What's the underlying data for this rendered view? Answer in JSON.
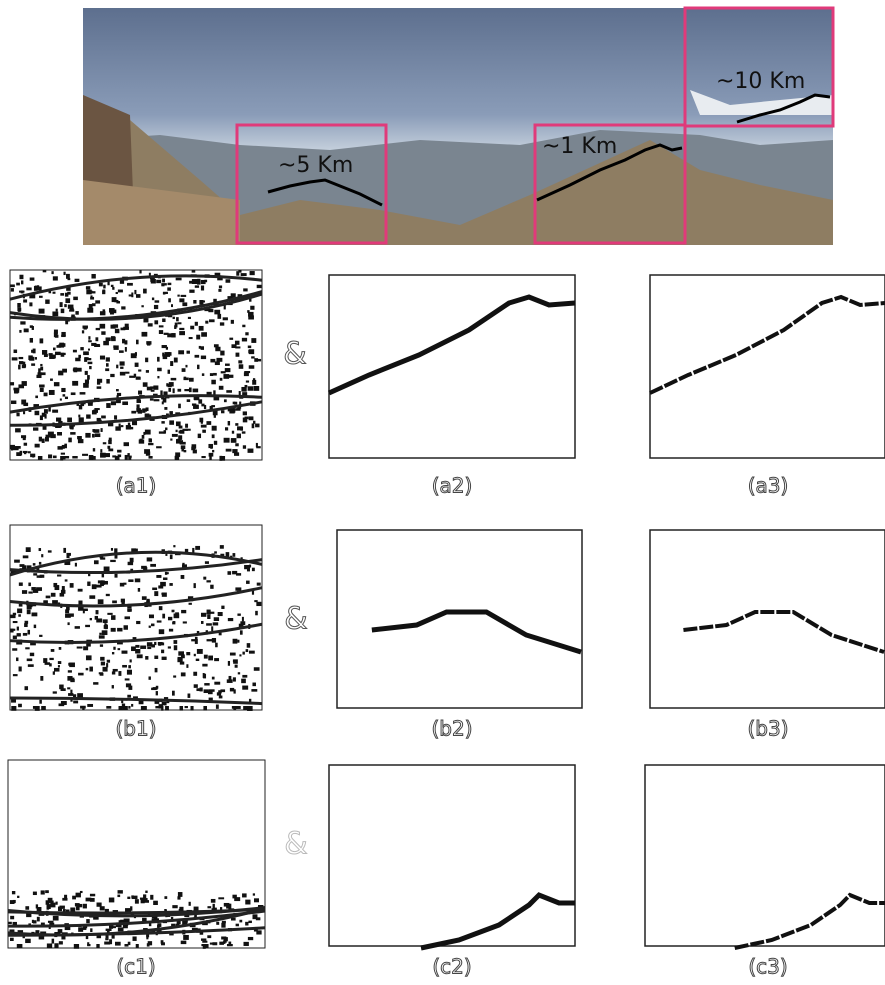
{
  "panorama": {
    "distance_labels": [
      "~5 Km",
      "~1 Km",
      "~10 Km"
    ]
  },
  "rows": [
    {
      "labels": [
        "(a1)",
        "(a2)",
        "(a3)"
      ],
      "operator": "&"
    },
    {
      "labels": [
        "(b1)",
        "(b2)",
        "(b3)"
      ],
      "operator": "&"
    },
    {
      "labels": [
        "(c1)",
        "(c2)",
        "(c3)"
      ],
      "operator": "&"
    }
  ]
}
